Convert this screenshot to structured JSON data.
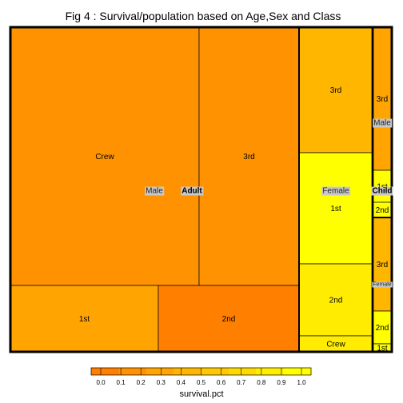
{
  "chart_data": {
    "type": "treemap",
    "title": "Fig 4 : Survival/population based on Age,Sex and Class",
    "hierarchy": [
      "Age",
      "Sex",
      "Class"
    ],
    "size_variable": "population",
    "color_variable": "survival.pct",
    "groups": [
      {
        "age": "Adult",
        "sex": "Male",
        "classes": [
          {
            "label": "Crew",
            "population": 862,
            "survival_pct": 0.22
          },
          {
            "label": "3rd",
            "population": 462,
            "survival_pct": 0.16
          },
          {
            "label": "1st",
            "population": 175,
            "survival_pct": 0.33
          },
          {
            "label": "2nd",
            "population": 168,
            "survival_pct": 0.08
          }
        ]
      },
      {
        "age": "Adult",
        "sex": "Female",
        "classes": [
          {
            "label": "3rd",
            "population": 165,
            "survival_pct": 0.46
          },
          {
            "label": "1st",
            "population": 144,
            "survival_pct": 0.97
          },
          {
            "label": "2nd",
            "population": 93,
            "survival_pct": 0.86
          },
          {
            "label": "Crew",
            "population": 23,
            "survival_pct": 0.87
          }
        ]
      },
      {
        "age": "Child",
        "sex": "Male",
        "classes": [
          {
            "label": "3rd",
            "population": 48,
            "survival_pct": 0.27
          },
          {
            "label": "1st",
            "population": 5,
            "survival_pct": 1.0
          },
          {
            "label": "2nd",
            "population": 11,
            "survival_pct": 1.0
          }
        ]
      },
      {
        "age": "Child",
        "sex": "Female",
        "classes": [
          {
            "label": "3rd",
            "population": 31,
            "survival_pct": 0.45
          },
          {
            "label": "2nd",
            "population": 13,
            "survival_pct": 1.0
          },
          {
            "label": "1st",
            "population": 1,
            "survival_pct": 1.0
          }
        ]
      }
    ],
    "legend": {
      "title": "survival.pct",
      "ticks": [
        "0.0",
        "0.1",
        "0.2",
        "0.3",
        "0.4",
        "0.5",
        "0.6",
        "0.7",
        "0.8",
        "0.9",
        "1.0"
      ],
      "range": [
        0,
        1
      ],
      "colors": [
        "#ff7f00",
        "#ff9200",
        "#ffa400",
        "#ffb600",
        "#ffc800",
        "#ffda00",
        "#ffec00",
        "#ffff00"
      ],
      "placement": "bottom"
    }
  }
}
